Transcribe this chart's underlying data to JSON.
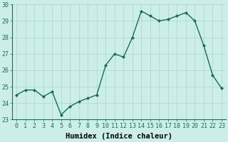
{
  "x": [
    0,
    1,
    2,
    3,
    4,
    5,
    6,
    7,
    8,
    9,
    10,
    11,
    12,
    13,
    14,
    15,
    16,
    17,
    18,
    19,
    20,
    21,
    22,
    23
  ],
  "y": [
    24.5,
    24.8,
    24.8,
    24.4,
    24.7,
    23.3,
    23.8,
    24.1,
    24.3,
    24.5,
    26.3,
    27.0,
    26.8,
    28.0,
    29.6,
    29.3,
    29.0,
    29.1,
    29.3,
    29.5,
    29.0,
    27.5,
    25.7,
    24.9
  ],
  "line_color": "#1a6b5a",
  "marker": "D",
  "marker_size": 2.0,
  "bg_color": "#cceee8",
  "grid_color": "#aad4cc",
  "xlabel": "Humidex (Indice chaleur)",
  "ylim": [
    23,
    30
  ],
  "xlim": [
    -0.5,
    23.5
  ],
  "yticks": [
    23,
    24,
    25,
    26,
    27,
    28,
    29,
    30
  ],
  "xticks": [
    0,
    1,
    2,
    3,
    4,
    5,
    6,
    7,
    8,
    9,
    10,
    11,
    12,
    13,
    14,
    15,
    16,
    17,
    18,
    19,
    20,
    21,
    22,
    23
  ],
  "tick_fontsize": 6.0,
  "xlabel_fontsize": 7.5,
  "linewidth": 1.0
}
